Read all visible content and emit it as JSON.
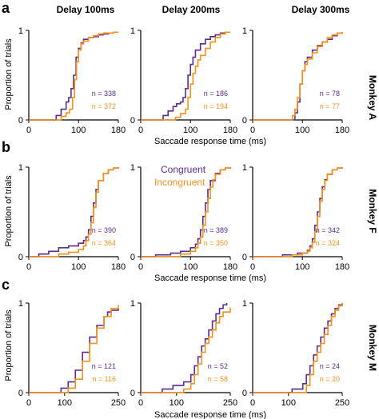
{
  "colors": {
    "congruent": "#5b2d8f",
    "incongruent": "#f2921d"
  },
  "panels": [
    "a",
    "b",
    "c"
  ],
  "column_titles": [
    "Delay 100ms",
    "Delay 200ms",
    "Delay 300ms"
  ],
  "monkeys": [
    "Monkey A",
    "Monkey F",
    "Monkey M"
  ],
  "ylabel": "Proportion of trials",
  "xlabel": "Saccade response time (ms)",
  "legend": {
    "congruent": "Congruent",
    "incongruent": "Incongruent"
  },
  "chart_data": [
    {
      "type": "line",
      "row": 0,
      "col": 0,
      "xlim": [
        0,
        180
      ],
      "ylim": [
        0,
        1
      ],
      "xticks": [
        "0",
        "100",
        "180"
      ],
      "yticks": [
        "0",
        "1"
      ],
      "n_labels": [
        "n = 338",
        "n = 372"
      ],
      "series": [
        {
          "name": "Congruent",
          "color": "#5b2d8f",
          "x": [
            40,
            55,
            65,
            75,
            80,
            85,
            90,
            95,
            100,
            105,
            110,
            120,
            130,
            140,
            150,
            160,
            170,
            180
          ],
          "y": [
            0,
            0.05,
            0.12,
            0.2,
            0.25,
            0.35,
            0.5,
            0.7,
            0.8,
            0.86,
            0.9,
            0.92,
            0.93,
            0.95,
            0.96,
            0.97,
            0.98,
            0.98
          ]
        },
        {
          "name": "Incongruent",
          "color": "#f2921d",
          "x": [
            50,
            65,
            75,
            82,
            88,
            92,
            96,
            100,
            105,
            110,
            120,
            130,
            140,
            150,
            160,
            170,
            180
          ],
          "y": [
            0,
            0.04,
            0.08,
            0.12,
            0.25,
            0.45,
            0.65,
            0.78,
            0.85,
            0.88,
            0.92,
            0.94,
            0.96,
            0.97,
            0.97,
            0.98,
            0.98
          ]
        }
      ]
    },
    {
      "type": "line",
      "row": 0,
      "col": 1,
      "xlim": [
        0,
        180
      ],
      "ylim": [
        0,
        1
      ],
      "xticks": [
        "0",
        "100",
        "180"
      ],
      "yticks": [
        "0",
        "1"
      ],
      "n_labels": [
        "n = 186",
        "n = 194"
      ],
      "series": [
        {
          "name": "Congruent",
          "color": "#5b2d8f",
          "x": [
            30,
            45,
            55,
            65,
            72,
            80,
            85,
            90,
            95,
            100,
            105,
            110,
            120,
            130,
            140,
            150,
            160,
            170,
            180
          ],
          "y": [
            0,
            0.05,
            0.1,
            0.15,
            0.18,
            0.2,
            0.25,
            0.35,
            0.5,
            0.62,
            0.7,
            0.78,
            0.85,
            0.9,
            0.93,
            0.95,
            0.97,
            0.98,
            0.98
          ]
        },
        {
          "name": "Incongruent",
          "color": "#f2921d",
          "x": [
            60,
            70,
            80,
            90,
            95,
            100,
            105,
            110,
            115,
            120,
            130,
            140,
            150,
            160,
            170,
            180
          ],
          "y": [
            0,
            0.03,
            0.07,
            0.12,
            0.25,
            0.4,
            0.52,
            0.6,
            0.67,
            0.72,
            0.8,
            0.87,
            0.92,
            0.96,
            0.98,
            0.98
          ]
        }
      ]
    },
    {
      "type": "line",
      "row": 0,
      "col": 2,
      "xlim": [
        0,
        180
      ],
      "ylim": [
        0,
        1
      ],
      "xticks": [
        "0",
        "100",
        "180"
      ],
      "yticks": [
        "0",
        "1"
      ],
      "n_labels": [
        "n = 78",
        "n = 77"
      ],
      "series": [
        {
          "name": "Congruent",
          "color": "#5b2d8f",
          "x": [
            75,
            85,
            90,
            95,
            100,
            105,
            110,
            120,
            130,
            140,
            150,
            160,
            170,
            180
          ],
          "y": [
            0,
            0.08,
            0.2,
            0.4,
            0.55,
            0.65,
            0.7,
            0.78,
            0.83,
            0.87,
            0.9,
            0.94,
            0.97,
            0.98
          ]
        },
        {
          "name": "Incongruent",
          "color": "#f2921d",
          "x": [
            70,
            80,
            85,
            90,
            95,
            100,
            105,
            110,
            120,
            130,
            140,
            150,
            160,
            170,
            180
          ],
          "y": [
            0,
            0.05,
            0.12,
            0.25,
            0.4,
            0.55,
            0.62,
            0.68,
            0.75,
            0.82,
            0.87,
            0.92,
            0.95,
            0.97,
            0.98
          ]
        }
      ]
    },
    {
      "type": "line",
      "row": 1,
      "col": 0,
      "xlim": [
        0,
        180
      ],
      "ylim": [
        0,
        1
      ],
      "xticks": [
        "0",
        "100",
        "180"
      ],
      "yticks": [
        "0",
        "1"
      ],
      "n_labels": [
        "n = 390",
        "n = 364"
      ],
      "series": [
        {
          "name": "Congruent",
          "color": "#5b2d8f",
          "x": [
            0,
            20,
            40,
            60,
            80,
            100,
            110,
            115,
            120,
            125,
            130,
            135,
            140,
            150,
            160,
            170,
            180
          ],
          "y": [
            0,
            0.03,
            0.06,
            0.1,
            0.12,
            0.15,
            0.18,
            0.22,
            0.3,
            0.45,
            0.6,
            0.75,
            0.85,
            0.93,
            0.97,
            0.99,
            1
          ]
        },
        {
          "name": "Incongruent",
          "color": "#f2921d",
          "x": [
            40,
            60,
            80,
            100,
            110,
            115,
            120,
            125,
            130,
            135,
            140,
            150,
            160,
            170,
            180
          ],
          "y": [
            0,
            0.03,
            0.05,
            0.08,
            0.12,
            0.18,
            0.25,
            0.38,
            0.55,
            0.72,
            0.85,
            0.93,
            0.97,
            0.99,
            1
          ]
        }
      ]
    },
    {
      "type": "line",
      "row": 1,
      "col": 1,
      "xlim": [
        0,
        180
      ],
      "ylim": [
        0,
        1
      ],
      "xticks": [
        "0",
        "100",
        "180"
      ],
      "yticks": [
        "0",
        "1"
      ],
      "n_labels": [
        "n = 389",
        "n = 350"
      ],
      "series": [
        {
          "name": "Congruent",
          "color": "#5b2d8f",
          "x": [
            10,
            30,
            60,
            80,
            100,
            110,
            115,
            120,
            125,
            130,
            135,
            140,
            150,
            160,
            170,
            180
          ],
          "y": [
            0,
            0.02,
            0.04,
            0.06,
            0.1,
            0.14,
            0.2,
            0.3,
            0.45,
            0.6,
            0.75,
            0.85,
            0.93,
            0.97,
            0.99,
            1
          ]
        },
        {
          "name": "Incongruent",
          "color": "#f2921d",
          "x": [
            50,
            80,
            100,
            110,
            115,
            120,
            125,
            130,
            135,
            140,
            145,
            150,
            160,
            170,
            180
          ],
          "y": [
            0,
            0.03,
            0.06,
            0.1,
            0.15,
            0.22,
            0.35,
            0.5,
            0.65,
            0.78,
            0.86,
            0.92,
            0.97,
            0.99,
            1
          ]
        }
      ]
    },
    {
      "type": "line",
      "row": 1,
      "col": 2,
      "xlim": [
        0,
        180
      ],
      "ylim": [
        0,
        1
      ],
      "xticks": [
        "0",
        "100",
        "180"
      ],
      "yticks": [
        "0",
        "1"
      ],
      "n_labels": [
        "n = 342",
        "n = 324"
      ],
      "series": [
        {
          "name": "Congruent",
          "color": "#5b2d8f",
          "x": [
            20,
            60,
            90,
            110,
            115,
            120,
            125,
            130,
            135,
            140,
            145,
            150,
            160,
            170,
            180
          ],
          "y": [
            0,
            0.02,
            0.04,
            0.07,
            0.12,
            0.2,
            0.35,
            0.5,
            0.65,
            0.78,
            0.86,
            0.92,
            0.97,
            0.99,
            1
          ]
        },
        {
          "name": "Incongruent",
          "color": "#f2921d",
          "x": [
            40,
            80,
            100,
            110,
            115,
            120,
            125,
            130,
            135,
            140,
            145,
            150,
            160,
            170,
            180
          ],
          "y": [
            0,
            0.02,
            0.04,
            0.06,
            0.1,
            0.16,
            0.28,
            0.45,
            0.62,
            0.75,
            0.85,
            0.92,
            0.97,
            0.99,
            1
          ]
        }
      ]
    },
    {
      "type": "line",
      "row": 2,
      "col": 0,
      "xlim": [
        0,
        250
      ],
      "ylim": [
        0,
        1
      ],
      "xticks": [
        "0",
        "100",
        "250"
      ],
      "yticks": [
        "0",
        "1"
      ],
      "n_labels": [
        "n = 121",
        "n = 116"
      ],
      "series": [
        {
          "name": "Congruent",
          "color": "#5b2d8f",
          "x": [
            70,
            90,
            110,
            130,
            150,
            170,
            190,
            210,
            220,
            230,
            250
          ],
          "y": [
            0,
            0.05,
            0.12,
            0.25,
            0.45,
            0.62,
            0.75,
            0.85,
            0.9,
            0.92,
            0.94
          ]
        },
        {
          "name": "Incongruent",
          "color": "#f2921d",
          "x": [
            90,
            110,
            130,
            150,
            170,
            190,
            210,
            230,
            250
          ],
          "y": [
            0,
            0.05,
            0.15,
            0.35,
            0.55,
            0.72,
            0.85,
            0.94,
            0.98
          ]
        }
      ]
    },
    {
      "type": "line",
      "row": 2,
      "col": 1,
      "xlim": [
        0,
        250
      ],
      "ylim": [
        0,
        1
      ],
      "xticks": [
        "0",
        "100",
        "250"
      ],
      "yticks": [
        "0",
        "1"
      ],
      "n_labels": [
        "n = 52",
        "n = 58"
      ],
      "series": [
        {
          "name": "Congruent",
          "color": "#5b2d8f",
          "x": [
            40,
            60,
            90,
            120,
            140,
            150,
            160,
            170,
            180,
            190,
            200,
            210,
            220,
            230,
            240
          ],
          "y": [
            0,
            0.04,
            0.08,
            0.12,
            0.2,
            0.3,
            0.4,
            0.52,
            0.6,
            0.7,
            0.8,
            0.88,
            0.94,
            0.98,
            1
          ]
        },
        {
          "name": "Incongruent",
          "color": "#f2921d",
          "x": [
            70,
            120,
            140,
            150,
            160,
            170,
            180,
            190,
            200,
            210,
            220,
            230,
            250
          ],
          "y": [
            0,
            0.04,
            0.1,
            0.2,
            0.32,
            0.45,
            0.55,
            0.62,
            0.7,
            0.78,
            0.85,
            0.9,
            0.95
          ]
        }
      ]
    },
    {
      "type": "line",
      "row": 2,
      "col": 2,
      "xlim": [
        0,
        250
      ],
      "ylim": [
        0,
        1
      ],
      "xticks": [
        "0",
        "100",
        "250"
      ],
      "yticks": [
        "0",
        "1"
      ],
      "n_labels": [
        "n = 24",
        "n = 20"
      ],
      "series": [
        {
          "name": "Congruent",
          "color": "#5b2d8f",
          "x": [
            50,
            110,
            140,
            150,
            160,
            170,
            180,
            190,
            200,
            210,
            220,
            230,
            240,
            250
          ],
          "y": [
            0,
            0.04,
            0.1,
            0.2,
            0.3,
            0.42,
            0.52,
            0.62,
            0.72,
            0.8,
            0.88,
            0.94,
            0.98,
            1
          ]
        },
        {
          "name": "Incongruent",
          "color": "#f2921d",
          "x": [
            120,
            150,
            160,
            170,
            180,
            190,
            200,
            210,
            220,
            230,
            240,
            250
          ],
          "y": [
            0,
            0.08,
            0.2,
            0.35,
            0.45,
            0.55,
            0.65,
            0.75,
            0.85,
            0.92,
            0.97,
            1
          ]
        }
      ]
    }
  ]
}
